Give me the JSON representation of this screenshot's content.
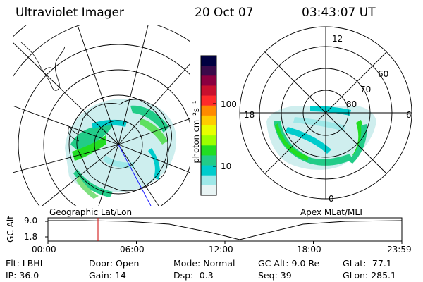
{
  "header": {
    "title": "Ultraviolet Imager",
    "date": "20 Oct 07",
    "time": "03:43:07 UT"
  },
  "panels": {
    "left_label": "Geographic Lat/Lon",
    "right_label": "Apex MLat/MLT"
  },
  "colorbar": {
    "unit_label": "photon cm⁻²s⁻¹",
    "ticks": [
      "100",
      "10"
    ],
    "colors": [
      "#000040",
      "#3a0a4a",
      "#8a0040",
      "#c8102e",
      "#ff2a2a",
      "#ff8a00",
      "#ffcc00",
      "#e8ff00",
      "#9cff00",
      "#22dd22",
      "#22cc88",
      "#00cccc",
      "#9ee8e8",
      "#e8f4f4"
    ]
  },
  "mlt_plot": {
    "hour_labels": {
      "top": "12",
      "bottom": "0",
      "left": "18",
      "right": "6"
    },
    "lat_labels": [
      "60",
      "70",
      "80"
    ]
  },
  "altitude_plot": {
    "ylabel": "GC Alt",
    "yticks": [
      "9.0",
      "1.8"
    ],
    "xticks": [
      "00:00",
      "06:00",
      "12:00",
      "18:00",
      "23:59"
    ]
  },
  "info": {
    "row1": [
      {
        "key": "Flt:",
        "value": "LBHL"
      },
      {
        "key": "Door:",
        "value": "Open"
      },
      {
        "key": "Mode:",
        "value": "Normal"
      },
      {
        "key": "GC Alt:",
        "value": "9.0 Re"
      },
      {
        "key": "GLat:",
        "value": "-77.1"
      }
    ],
    "row2": [
      {
        "key": "IP:",
        "value": "36.0"
      },
      {
        "key": "Gain:",
        "value": "14"
      },
      {
        "key": "Dsp:",
        "value": "-0.3"
      },
      {
        "key": "Seq:",
        "value": "39"
      },
      {
        "key": "GLon:",
        "value": "285.1"
      }
    ]
  },
  "colors": {
    "marker": "#cc0000",
    "meridian": "#1a1aff"
  }
}
